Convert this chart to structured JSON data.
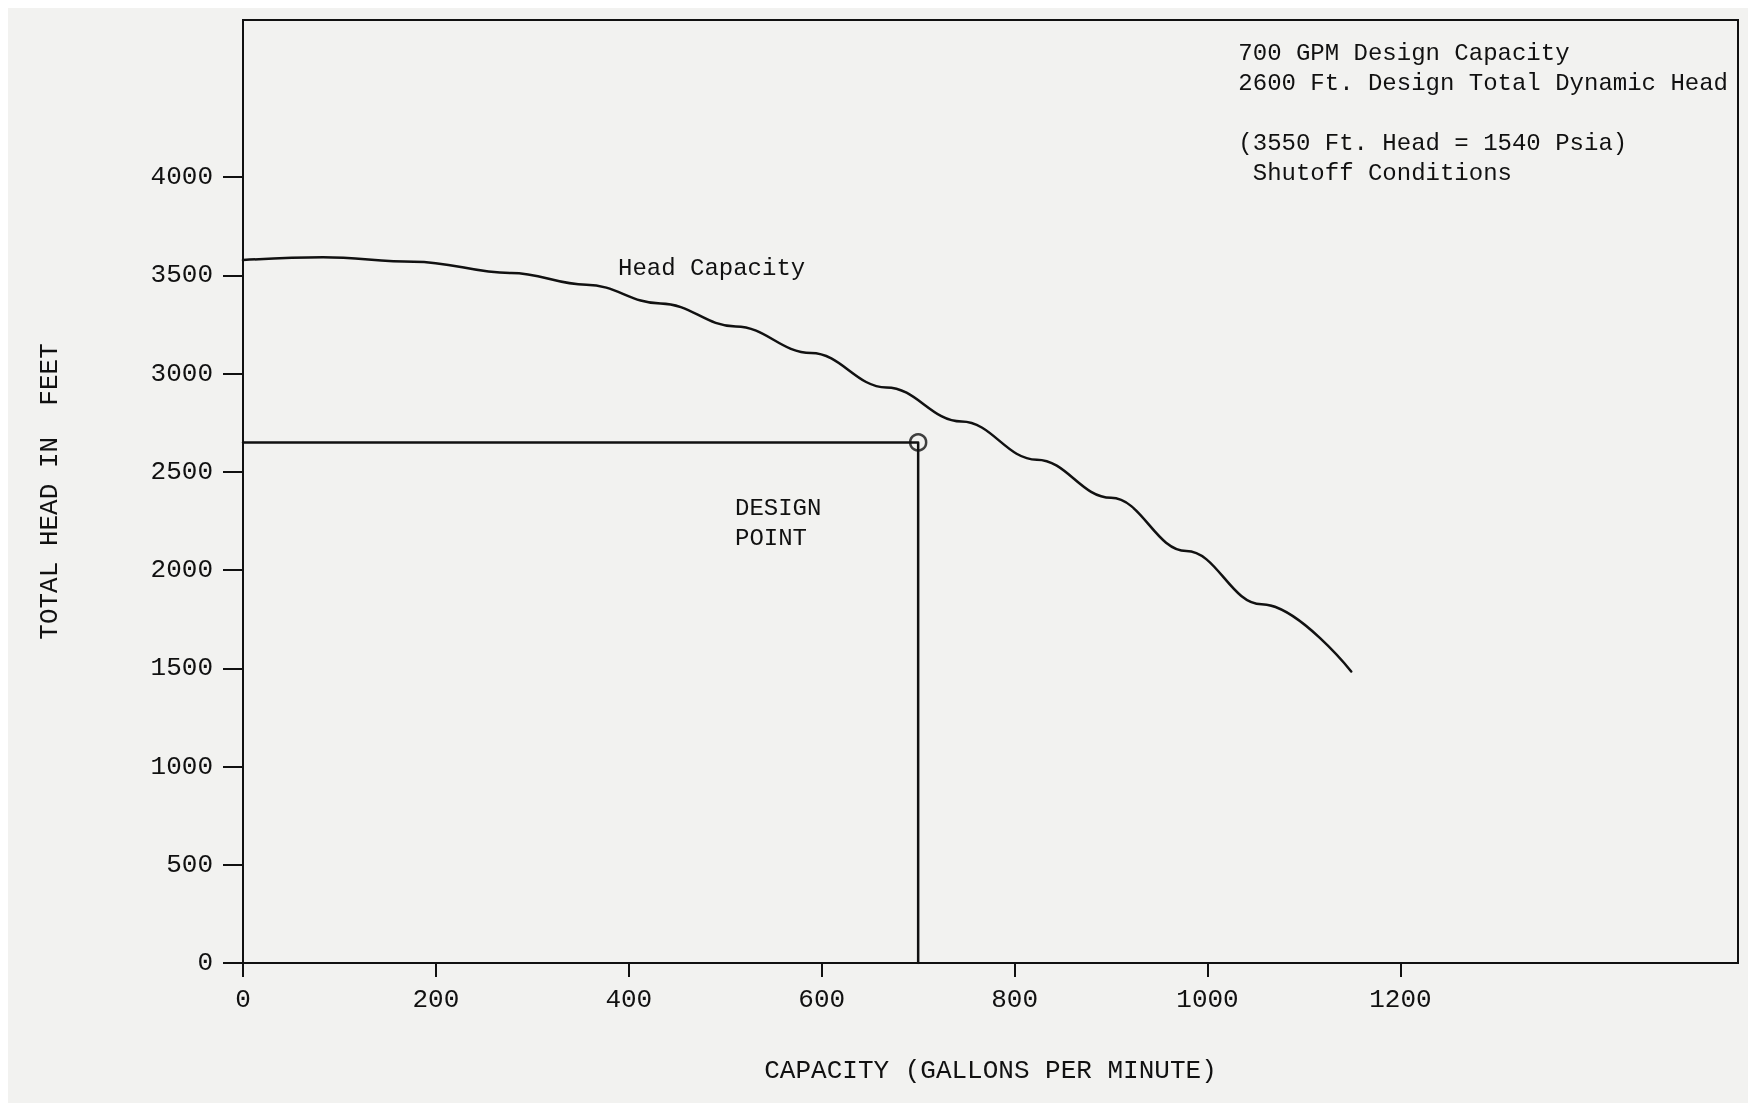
{
  "chart_data": {
    "type": "line",
    "xlabel": "CAPACITY (GALLONS PER MINUTE)",
    "ylabel": "TOTAL HEAD IN  FEET",
    "xlim": [
      0,
      1550
    ],
    "xticks": [
      0,
      200,
      400,
      600,
      800,
      1000,
      1200
    ],
    "ylim": [
      0,
      4800
    ],
    "yticks": [
      0,
      500,
      1000,
      1500,
      2000,
      2500,
      3000,
      3500,
      4000
    ],
    "grid": false,
    "marker": "none",
    "line_style": "solid",
    "series": [
      {
        "color": "#111111",
        "x": [
          0,
          83,
          177,
          278,
          356,
          433,
          511,
          589,
          667,
          745,
          823,
          900,
          978,
          1056,
          1149
        ],
        "values": [
          3578,
          3593,
          3570,
          3512,
          3453,
          3357,
          3240,
          3105,
          2930,
          2756,
          2562,
          2368,
          2097,
          1826,
          1484
        ]
      },
      {
        "color": "#111111",
        "x": [
          0,
          700,
          700
        ],
        "values": [
          2650,
          2650,
          0
        ]
      },
      {
        "type": "scatter",
        "color": "#111111",
        "marker": "circle",
        "x": [
          700
        ],
        "values": [
          2650
        ]
      }
    ],
    "annotations": [
      "Head Capacity",
      "DESIGN\nPOINT",
      "700 GPM Design Capacity\n2600 Ft. Design Total Dynamic Head\n\n(3550 Ft. Head = 1540 Psia)\n Shutoff Conditions"
    ]
  }
}
